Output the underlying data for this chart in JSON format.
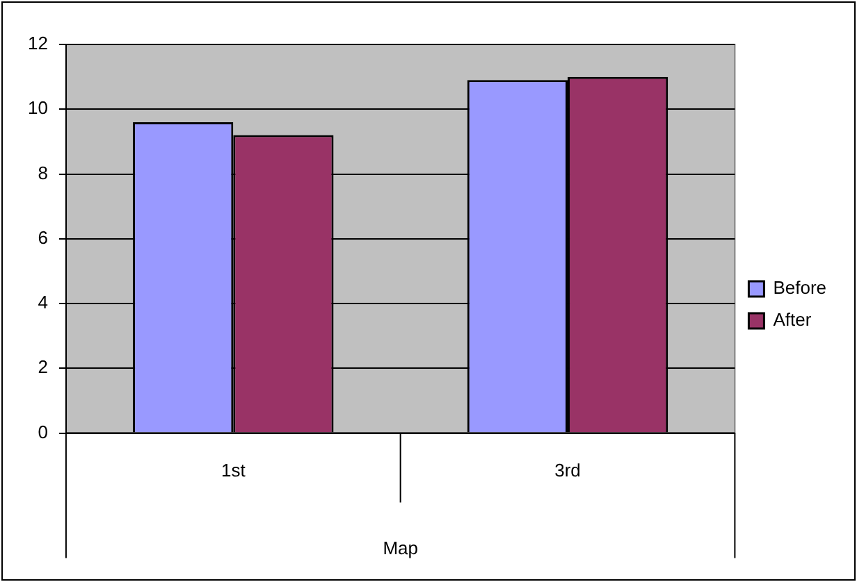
{
  "chart_data": {
    "type": "bar",
    "categories": [
      "1st",
      "3rd"
    ],
    "xlabel": "Map",
    "series": [
      {
        "name": "Before",
        "color": "#9999ff",
        "values": [
          9.6,
          10.9
        ]
      },
      {
        "name": "After",
        "color": "#993366",
        "values": [
          9.2,
          11.0
        ]
      }
    ],
    "ylim": [
      0,
      12
    ],
    "yticks": [
      0,
      2,
      4,
      6,
      8,
      10,
      12
    ],
    "grid": "y",
    "legend": "right"
  }
}
